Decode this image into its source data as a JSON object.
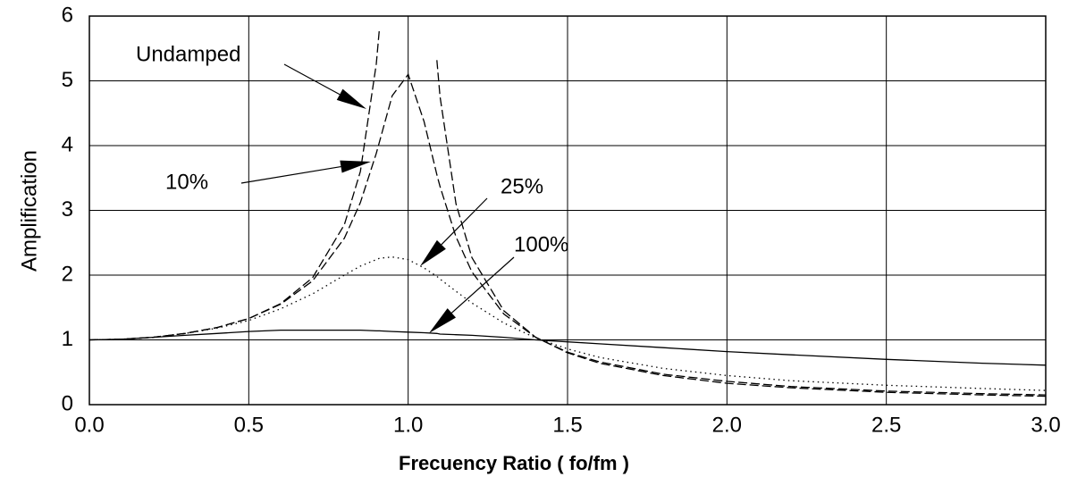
{
  "chart_data": {
    "type": "line",
    "x_label": "Frecuency Ratio  ( fo/fm )",
    "y_label": "Amplification",
    "x": [
      0,
      0.1,
      0.2,
      0.3,
      0.4,
      0.5,
      0.6,
      0.7,
      0.8,
      0.85,
      0.9,
      0.91,
      0.95,
      1.0,
      1.05,
      1.09,
      1.1,
      1.15,
      1.2,
      1.3,
      1.4,
      1.5,
      1.6,
      1.8,
      2.0,
      2.2,
      2.5,
      2.8,
      3.0
    ],
    "series": [
      {
        "name": "Undamped",
        "color": "#000000",
        "dash": "dashed",
        "values": [
          1.0,
          1.01,
          1.04,
          1.1,
          1.19,
          1.33,
          1.56,
          1.96,
          2.78,
          3.6,
          5.26,
          5.82,
          null,
          null,
          null,
          5.32,
          4.76,
          3.1,
          2.27,
          1.45,
          1.04,
          0.8,
          0.64,
          0.45,
          0.33,
          0.26,
          0.19,
          0.15,
          0.13
        ]
      },
      {
        "name": "10%",
        "color": "#000000",
        "dash": "dashed",
        "values": [
          1.0,
          1.01,
          1.04,
          1.1,
          1.19,
          1.33,
          1.55,
          1.91,
          2.57,
          3.12,
          3.88,
          4.06,
          4.77,
          5.1,
          4.37,
          3.55,
          3.37,
          2.59,
          2.05,
          1.4,
          1.04,
          0.81,
          0.66,
          0.47,
          0.36,
          0.28,
          0.21,
          0.17,
          0.15
        ]
      },
      {
        "name": "25%",
        "color": "#000000",
        "dash": "dotted",
        "values": [
          1.0,
          1.01,
          1.04,
          1.1,
          1.18,
          1.3,
          1.48,
          1.71,
          2.0,
          2.14,
          2.24,
          2.26,
          2.28,
          2.24,
          2.11,
          1.98,
          1.94,
          1.75,
          1.57,
          1.26,
          1.03,
          0.86,
          0.73,
          0.56,
          0.45,
          0.37,
          0.3,
          0.25,
          0.22
        ]
      },
      {
        "name": "100%",
        "color": "#000000",
        "dash": "solid",
        "values": [
          1.0,
          1.01,
          1.04,
          1.07,
          1.1,
          1.13,
          1.15,
          1.15,
          1.15,
          1.15,
          1.14,
          1.14,
          1.13,
          1.12,
          1.11,
          1.1,
          1.09,
          1.08,
          1.07,
          1.04,
          1.0,
          0.97,
          0.94,
          0.88,
          0.82,
          0.77,
          0.7,
          0.64,
          0.61
        ]
      }
    ],
    "xlim": [
      0,
      3
    ],
    "xticks": [
      {
        "value": 0,
        "label": "0.0"
      },
      0.5,
      {
        "value": 1,
        "label": "1.0"
      },
      1.5,
      {
        "value": 2,
        "label": "2.0"
      },
      2.5,
      {
        "value": 3,
        "label": "3.0"
      }
    ],
    "ylim": [
      0,
      6
    ],
    "yticks": [
      0,
      1,
      2,
      3,
      4,
      5,
      6
    ],
    "grid": true
  }
}
